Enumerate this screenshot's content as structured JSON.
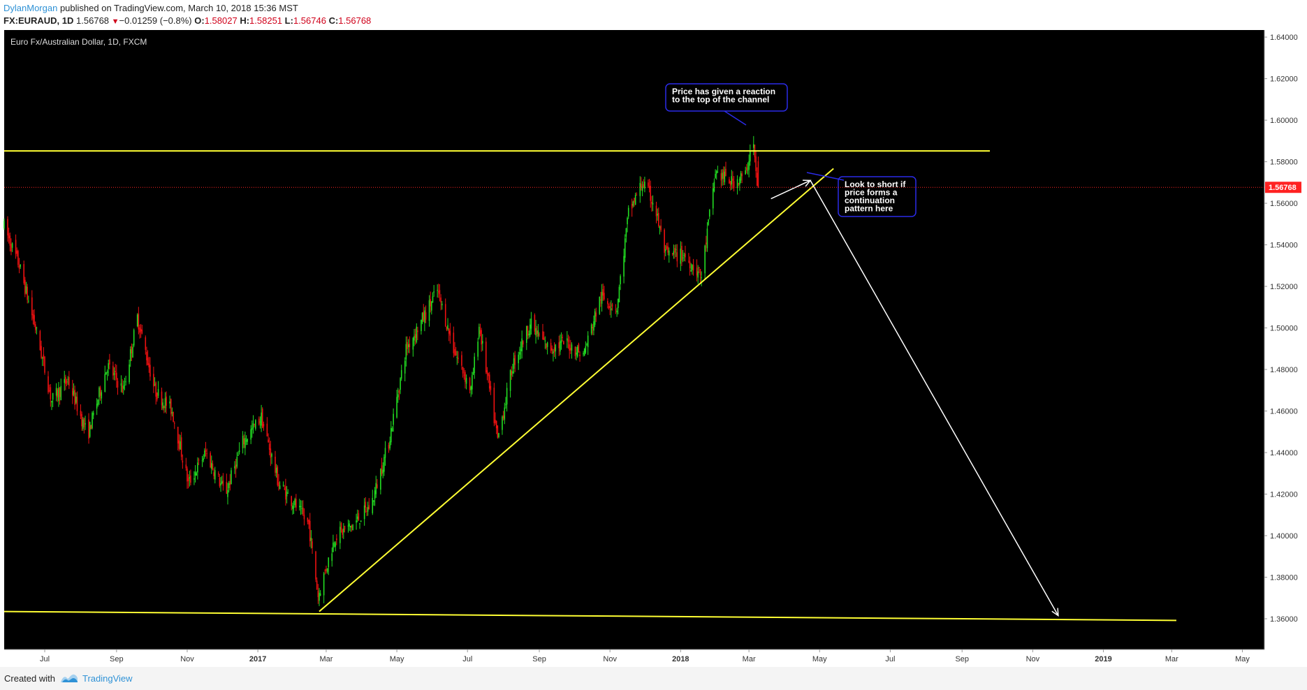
{
  "header": {
    "author": "DylanMorgan",
    "published_text": "published on TradingView.com, March 10, 2018 15:36 MST",
    "symbol": "FX:EURAUD, 1D",
    "last": "1.56768",
    "change_arrow": "▼",
    "change": "−0.01259 (−0.8%)",
    "o_label": "O:",
    "o_value": "1.58027",
    "h_label": "H:",
    "h_value": "1.58251",
    "l_label": "L:",
    "l_value": "1.56746",
    "c_label": "C:",
    "c_value": "1.56768"
  },
  "footer": {
    "created_label": "Created with",
    "brand": "TradingView",
    "logo_icon": "tradingview-logo-icon"
  },
  "colors": {
    "up": "#22dd22",
    "down": "#ee1111",
    "background": "#000000",
    "trendline": "#ffff33",
    "arrow": "#ffffff",
    "last_price": "#ff2222"
  },
  "chart_data": {
    "type": "candlestick",
    "title": "Euro Fx/Australian Dollar, 1D, FXCM",
    "y_range": [
      1.3452,
      1.6434
    ],
    "y_ticks": [
      "1.64000",
      "1.62000",
      "1.60000",
      "1.58000",
      "1.56000",
      "1.54000",
      "1.52000",
      "1.50000",
      "1.48000",
      "1.46000",
      "1.44000",
      "1.42000",
      "1.40000",
      "1.38000",
      "1.36000"
    ],
    "last_price_label": "1.56768",
    "x_range": [
      "2016-05-27",
      "2019-05-20"
    ],
    "x_ticks": [
      {
        "label": "Jul",
        "date": "2016-07-01"
      },
      {
        "label": "Sep",
        "date": "2016-09-01"
      },
      {
        "label": "Nov",
        "date": "2016-11-01"
      },
      {
        "label": "2017",
        "date": "2017-01-01",
        "bold": true
      },
      {
        "label": "Mar",
        "date": "2017-03-01"
      },
      {
        "label": "May",
        "date": "2017-05-01"
      },
      {
        "label": "Jul",
        "date": "2017-07-01"
      },
      {
        "label": "Sep",
        "date": "2017-09-01"
      },
      {
        "label": "Nov",
        "date": "2017-11-01"
      },
      {
        "label": "2018",
        "date": "2018-01-01",
        "bold": true
      },
      {
        "label": "Mar",
        "date": "2018-03-01"
      },
      {
        "label": "May",
        "date": "2018-05-01"
      },
      {
        "label": "Jul",
        "date": "2018-07-01"
      },
      {
        "label": "Sep",
        "date": "2018-09-01"
      },
      {
        "label": "Nov",
        "date": "2018-11-01"
      },
      {
        "label": "2019",
        "date": "2019-01-01",
        "bold": true
      },
      {
        "label": "Mar",
        "date": "2019-03-01"
      },
      {
        "label": "May",
        "date": "2019-05-01"
      }
    ],
    "price_path": [
      [
        "2016-05-27",
        1.55
      ],
      [
        "2016-06-10",
        1.53
      ],
      [
        "2016-06-24",
        1.5
      ],
      [
        "2016-07-08",
        1.465
      ],
      [
        "2016-07-22",
        1.475
      ],
      [
        "2016-08-08",
        1.448
      ],
      [
        "2016-08-25",
        1.482
      ],
      [
        "2016-09-08",
        1.47
      ],
      [
        "2016-09-20",
        1.505
      ],
      [
        "2016-10-05",
        1.47
      ],
      [
        "2016-10-20",
        1.46
      ],
      [
        "2016-11-03",
        1.425
      ],
      [
        "2016-11-18",
        1.44
      ],
      [
        "2016-12-05",
        1.42
      ],
      [
        "2016-12-20",
        1.445
      ],
      [
        "2017-01-05",
        1.457
      ],
      [
        "2017-01-20",
        1.425
      ],
      [
        "2017-02-03",
        1.415
      ],
      [
        "2017-02-15",
        1.405
      ],
      [
        "2017-02-23",
        1.371
      ],
      [
        "2017-03-10",
        1.4
      ],
      [
        "2017-03-25",
        1.405
      ],
      [
        "2017-04-10",
        1.415
      ],
      [
        "2017-04-25",
        1.445
      ],
      [
        "2017-05-10",
        1.49
      ],
      [
        "2017-05-25",
        1.505
      ],
      [
        "2017-06-06",
        1.518
      ],
      [
        "2017-06-20",
        1.49
      ],
      [
        "2017-07-05",
        1.47
      ],
      [
        "2017-07-12",
        1.501
      ],
      [
        "2017-07-28",
        1.446
      ],
      [
        "2017-08-10",
        1.482
      ],
      [
        "2017-08-25",
        1.502
      ],
      [
        "2017-09-10",
        1.49
      ],
      [
        "2017-09-25",
        1.493
      ],
      [
        "2017-10-10",
        1.487
      ],
      [
        "2017-10-25",
        1.515
      ],
      [
        "2017-11-08",
        1.51
      ],
      [
        "2017-11-18",
        1.555
      ],
      [
        "2017-11-30",
        1.57
      ],
      [
        "2017-12-10",
        1.56
      ],
      [
        "2017-12-20",
        1.535
      ],
      [
        "2018-01-05",
        1.535
      ],
      [
        "2018-01-20",
        1.525
      ],
      [
        "2018-02-01",
        1.575
      ],
      [
        "2018-02-15",
        1.57
      ],
      [
        "2018-02-28",
        1.574
      ],
      [
        "2018-03-05",
        1.595
      ],
      [
        "2018-03-09",
        1.5677
      ]
    ],
    "last_candle": {
      "date": "2018-03-09",
      "open": 1.58027,
      "high": 1.58251,
      "low": 1.56746,
      "close": 1.56768
    },
    "lines": [
      {
        "type": "horizontal-resistance",
        "from": [
          "2016-05-27",
          1.5852
        ],
        "to": [
          "2018-09-25",
          1.5852
        ]
      },
      {
        "type": "lower-channel",
        "from": [
          "2016-05-27",
          1.3635
        ],
        "to": [
          "2019-03-05",
          1.3592
        ]
      },
      {
        "type": "rising-trendline",
        "from": [
          "2017-02-23",
          1.3635
        ],
        "to": [
          "2018-05-13",
          1.5767
        ]
      }
    ],
    "arrows": [
      {
        "from": [
          "2018-03-20",
          1.5622
        ],
        "to": [
          "2018-04-23",
          1.571
        ]
      },
      {
        "from": [
          "2018-04-23",
          1.571
        ],
        "to": [
          "2018-11-23",
          1.3615
        ]
      }
    ],
    "annotations": [
      {
        "lines": [
          "Price has given a reaction",
          "to the top of the channel"
        ],
        "anchor": [
          "2018-03-04",
          1.5928
        ]
      },
      {
        "lines": [
          "Look to short if",
          "price forms a",
          "continuation",
          "pattern here"
        ],
        "anchor": [
          "2018-04-23",
          1.5718
        ]
      }
    ]
  }
}
